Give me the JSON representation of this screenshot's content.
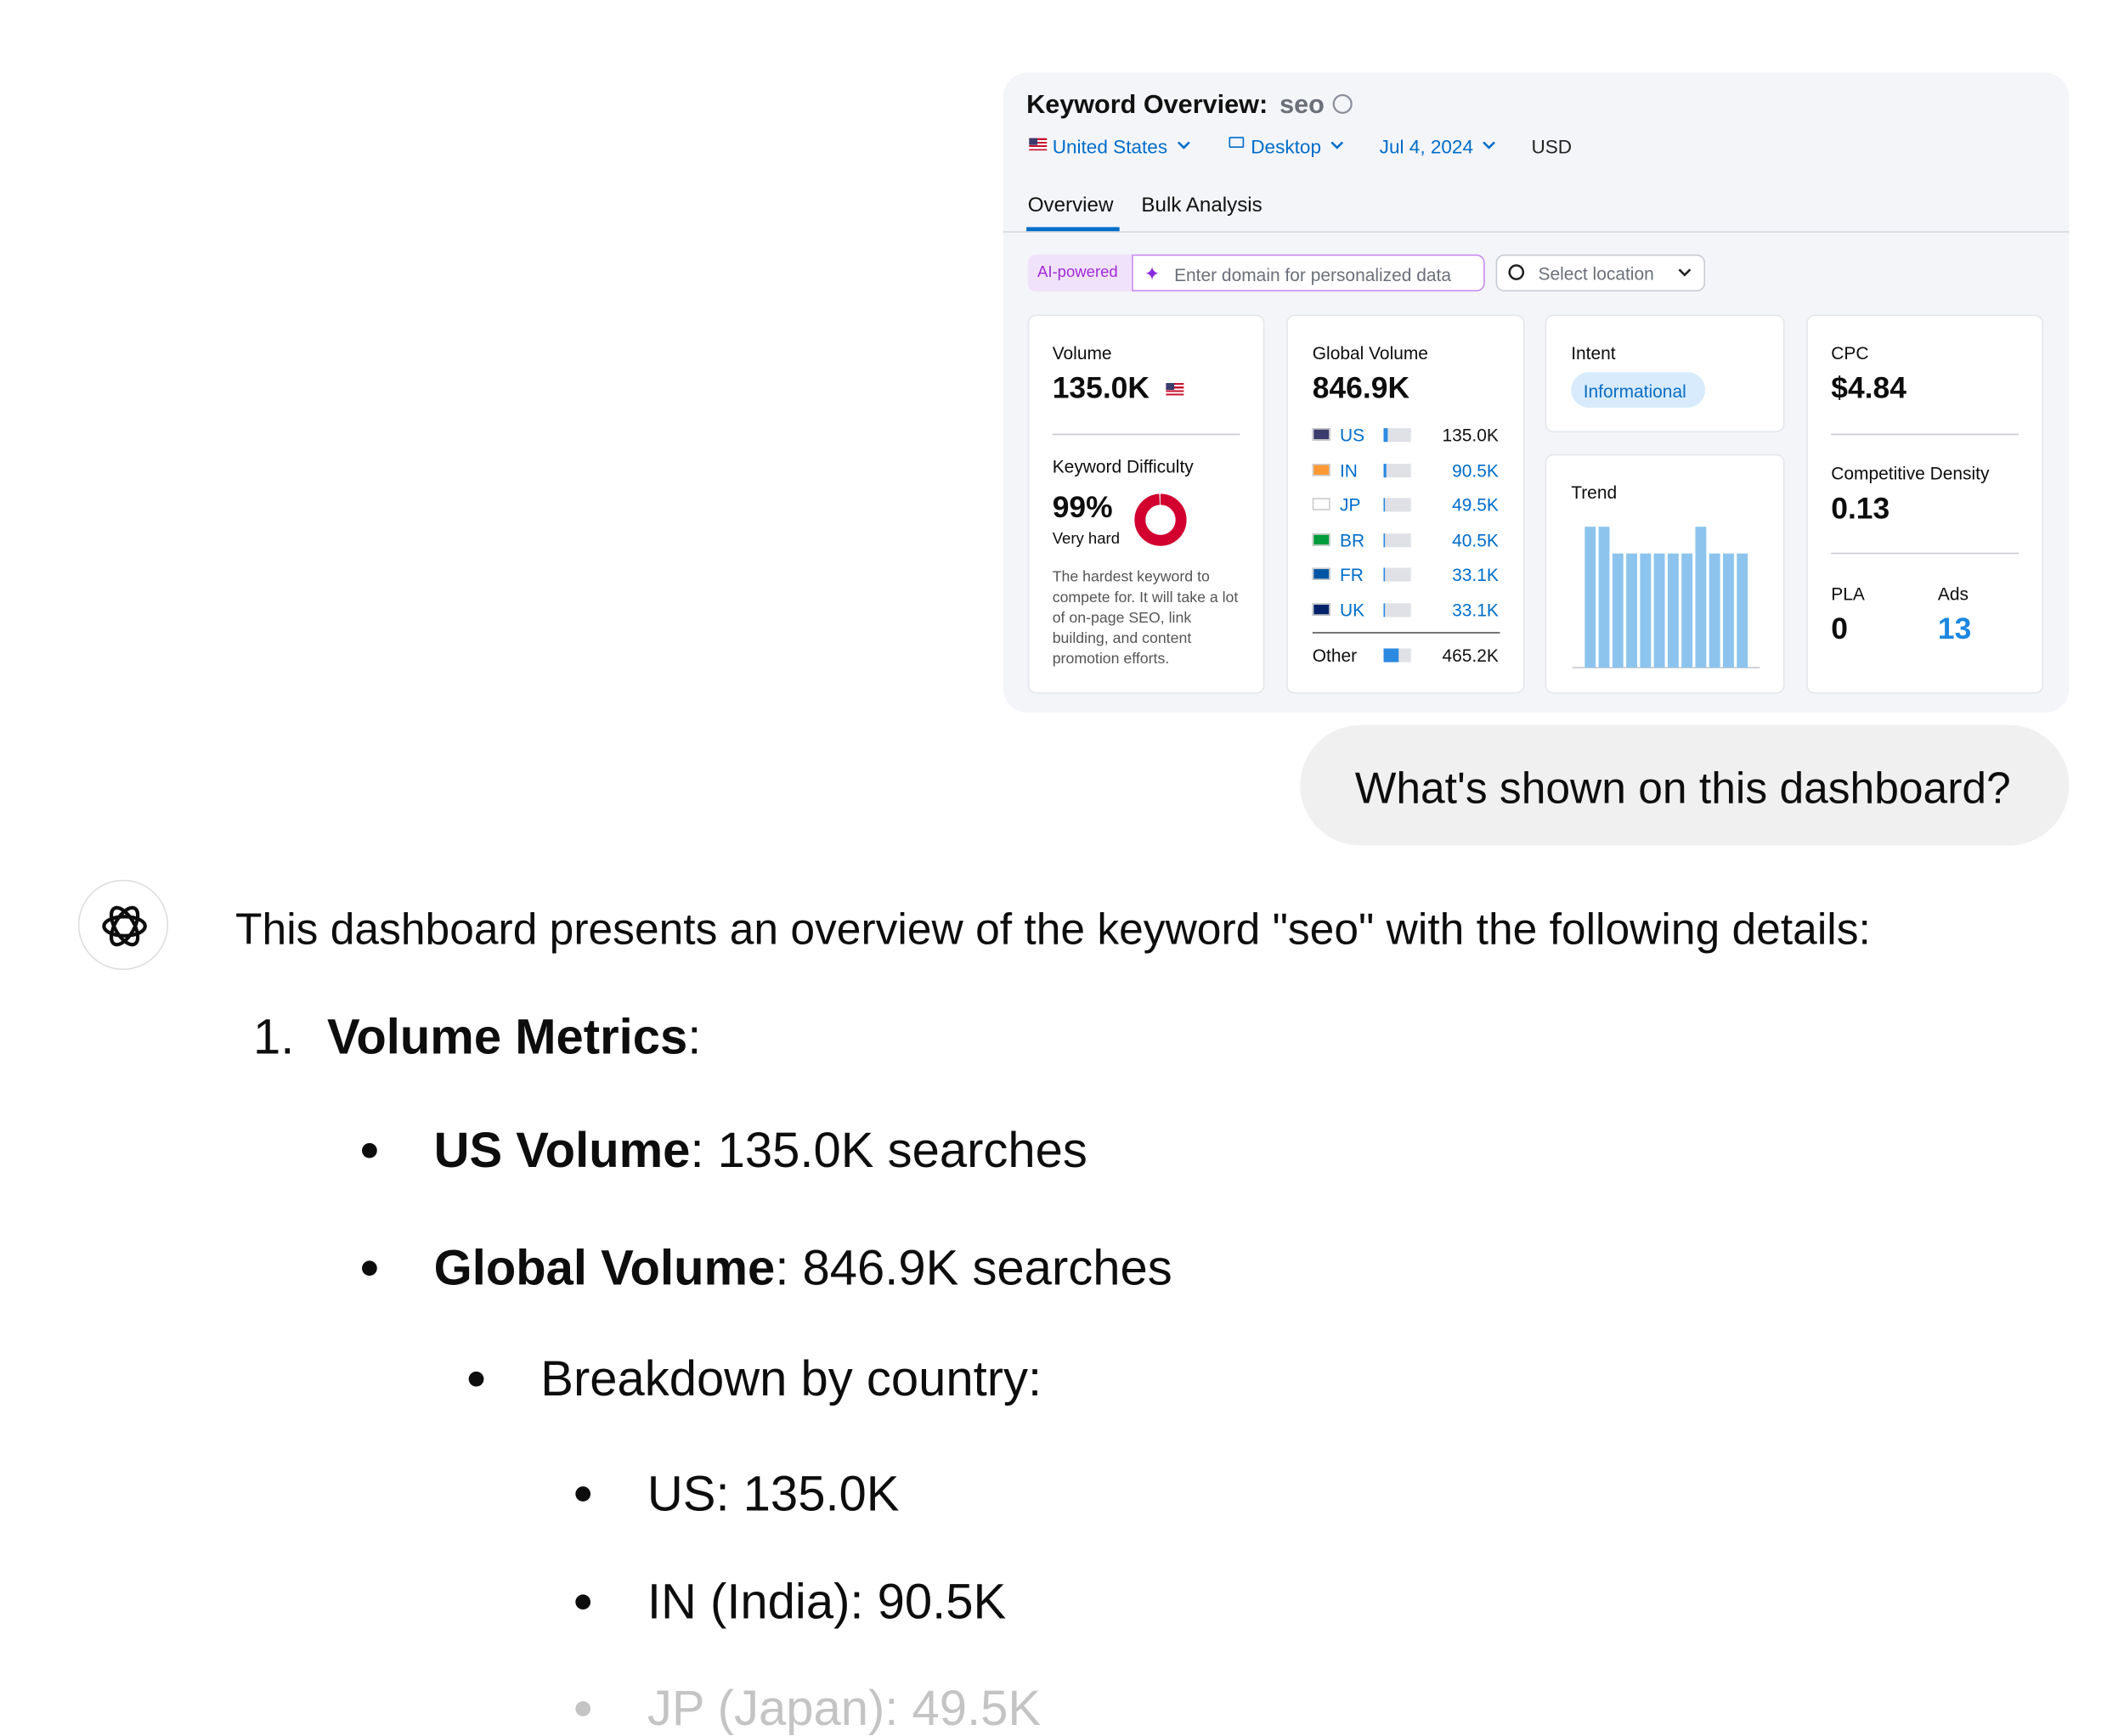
{
  "dashboard": {
    "title": "Keyword Overview:",
    "keyword": "seo",
    "filters": [
      "United States",
      "Desktop",
      "Jul 4, 2024",
      "USD"
    ],
    "tabs": [
      "Overview",
      "Bulk Analysis"
    ],
    "ai_badge": "AI-powered",
    "domain_placeholder": "Enter domain for personalized data",
    "location_placeholder": "Select location",
    "volume": {
      "label": "Volume",
      "value": "135.0K"
    },
    "keyword_difficulty": {
      "label": "Keyword Difficulty",
      "value": 99,
      "value_label": "99%",
      "level": "Very hard",
      "description": "The hardest keyword to compete for. It will take a lot of on-page SEO, link building, and content promotion efforts."
    },
    "global_volume": {
      "label": "Global Volume",
      "value": 846900,
      "value_label": "846.9K",
      "countries": [
        {
          "code": "US",
          "volume": 135000,
          "volume_label": "135.0K"
        },
        {
          "code": "IN",
          "volume": 90500,
          "volume_label": "90.5K"
        },
        {
          "code": "JP",
          "volume": 49500,
          "volume_label": "49.5K"
        },
        {
          "code": "BR",
          "volume": 40500,
          "volume_label": "40.5K"
        },
        {
          "code": "FR",
          "volume": 33100,
          "volume_label": "33.1K"
        },
        {
          "code": "UK",
          "volume": 33100,
          "volume_label": "33.1K"
        }
      ],
      "other": {
        "label": "Other",
        "volume": 465200,
        "volume_label": "465.2K"
      }
    },
    "intent": {
      "label": "Intent",
      "value": "Informational"
    },
    "trend": {
      "label": "Trend",
      "ylim": [
        0,
        100
      ],
      "values": [
        100,
        100,
        81,
        81,
        81,
        81,
        81,
        81,
        100,
        81,
        81,
        81
      ]
    },
    "cpc": {
      "label": "CPC",
      "value": "$4.84"
    },
    "competitive_density": {
      "label": "Competitive Density",
      "value": "0.13"
    },
    "pla": {
      "label": "PLA",
      "value": "0"
    },
    "ads": {
      "label": "Ads",
      "value": "13"
    }
  },
  "user_message": "What's shown on this dashboard?",
  "response": {
    "intro": "This dashboard presents an overview of the keyword \"seo\" with the following details:",
    "sections": [
      {
        "number": "1.",
        "title": "Volume Metrics",
        "title_suffix": ":",
        "items": [
          {
            "label": "US Volume",
            "text": ": 135.0K searches"
          },
          {
            "label": "Global Volume",
            "text": ": 846.9K searches"
          }
        ],
        "sub_heading": "Breakdown by country:",
        "sub_items": [
          "US: 135.0K",
          "IN (India): 90.5K",
          "JP (Japan): 49.5K"
        ]
      }
    ]
  }
}
